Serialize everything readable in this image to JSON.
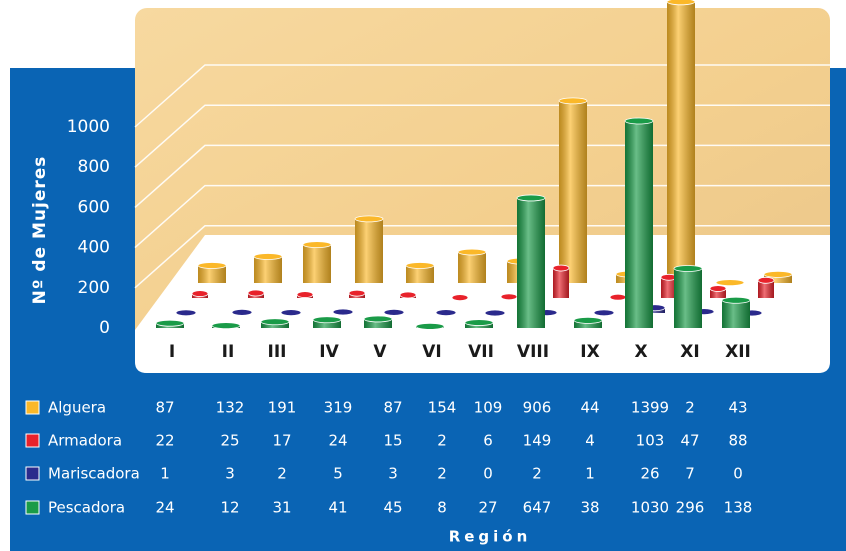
{
  "chart_data": {
    "type": "bar3d",
    "y_label": "Nº de Mujeres",
    "x_label": "Región",
    "categories": [
      "I",
      "II",
      "III",
      "IV",
      "V",
      "VI",
      "VII",
      "VIII",
      "IX",
      "X",
      "XI",
      "XII"
    ],
    "ylim": [
      0,
      1000
    ],
    "yticks": [
      0,
      200,
      400,
      600,
      800,
      1000
    ],
    "series": [
      {
        "name": "Alguera",
        "color": "#fbb829",
        "values": [
          87,
          132,
          191,
          319,
          87,
          154,
          109,
          906,
          44,
          1399,
          2,
          43
        ]
      },
      {
        "name": "Armadora",
        "color": "#e8222b",
        "values": [
          22,
          25,
          17,
          24,
          15,
          2,
          6,
          149,
          4,
          103,
          47,
          88
        ]
      },
      {
        "name": "Mariscadora",
        "color": "#2b2a8c",
        "values": [
          1,
          3,
          2,
          5,
          3,
          2,
          0,
          2,
          1,
          26,
          7,
          0
        ]
      },
      {
        "name": "Pescadora",
        "color": "#1a9b48",
        "values": [
          24,
          12,
          31,
          41,
          45,
          8,
          27,
          647,
          38,
          1030,
          296,
          138
        ]
      }
    ]
  }
}
